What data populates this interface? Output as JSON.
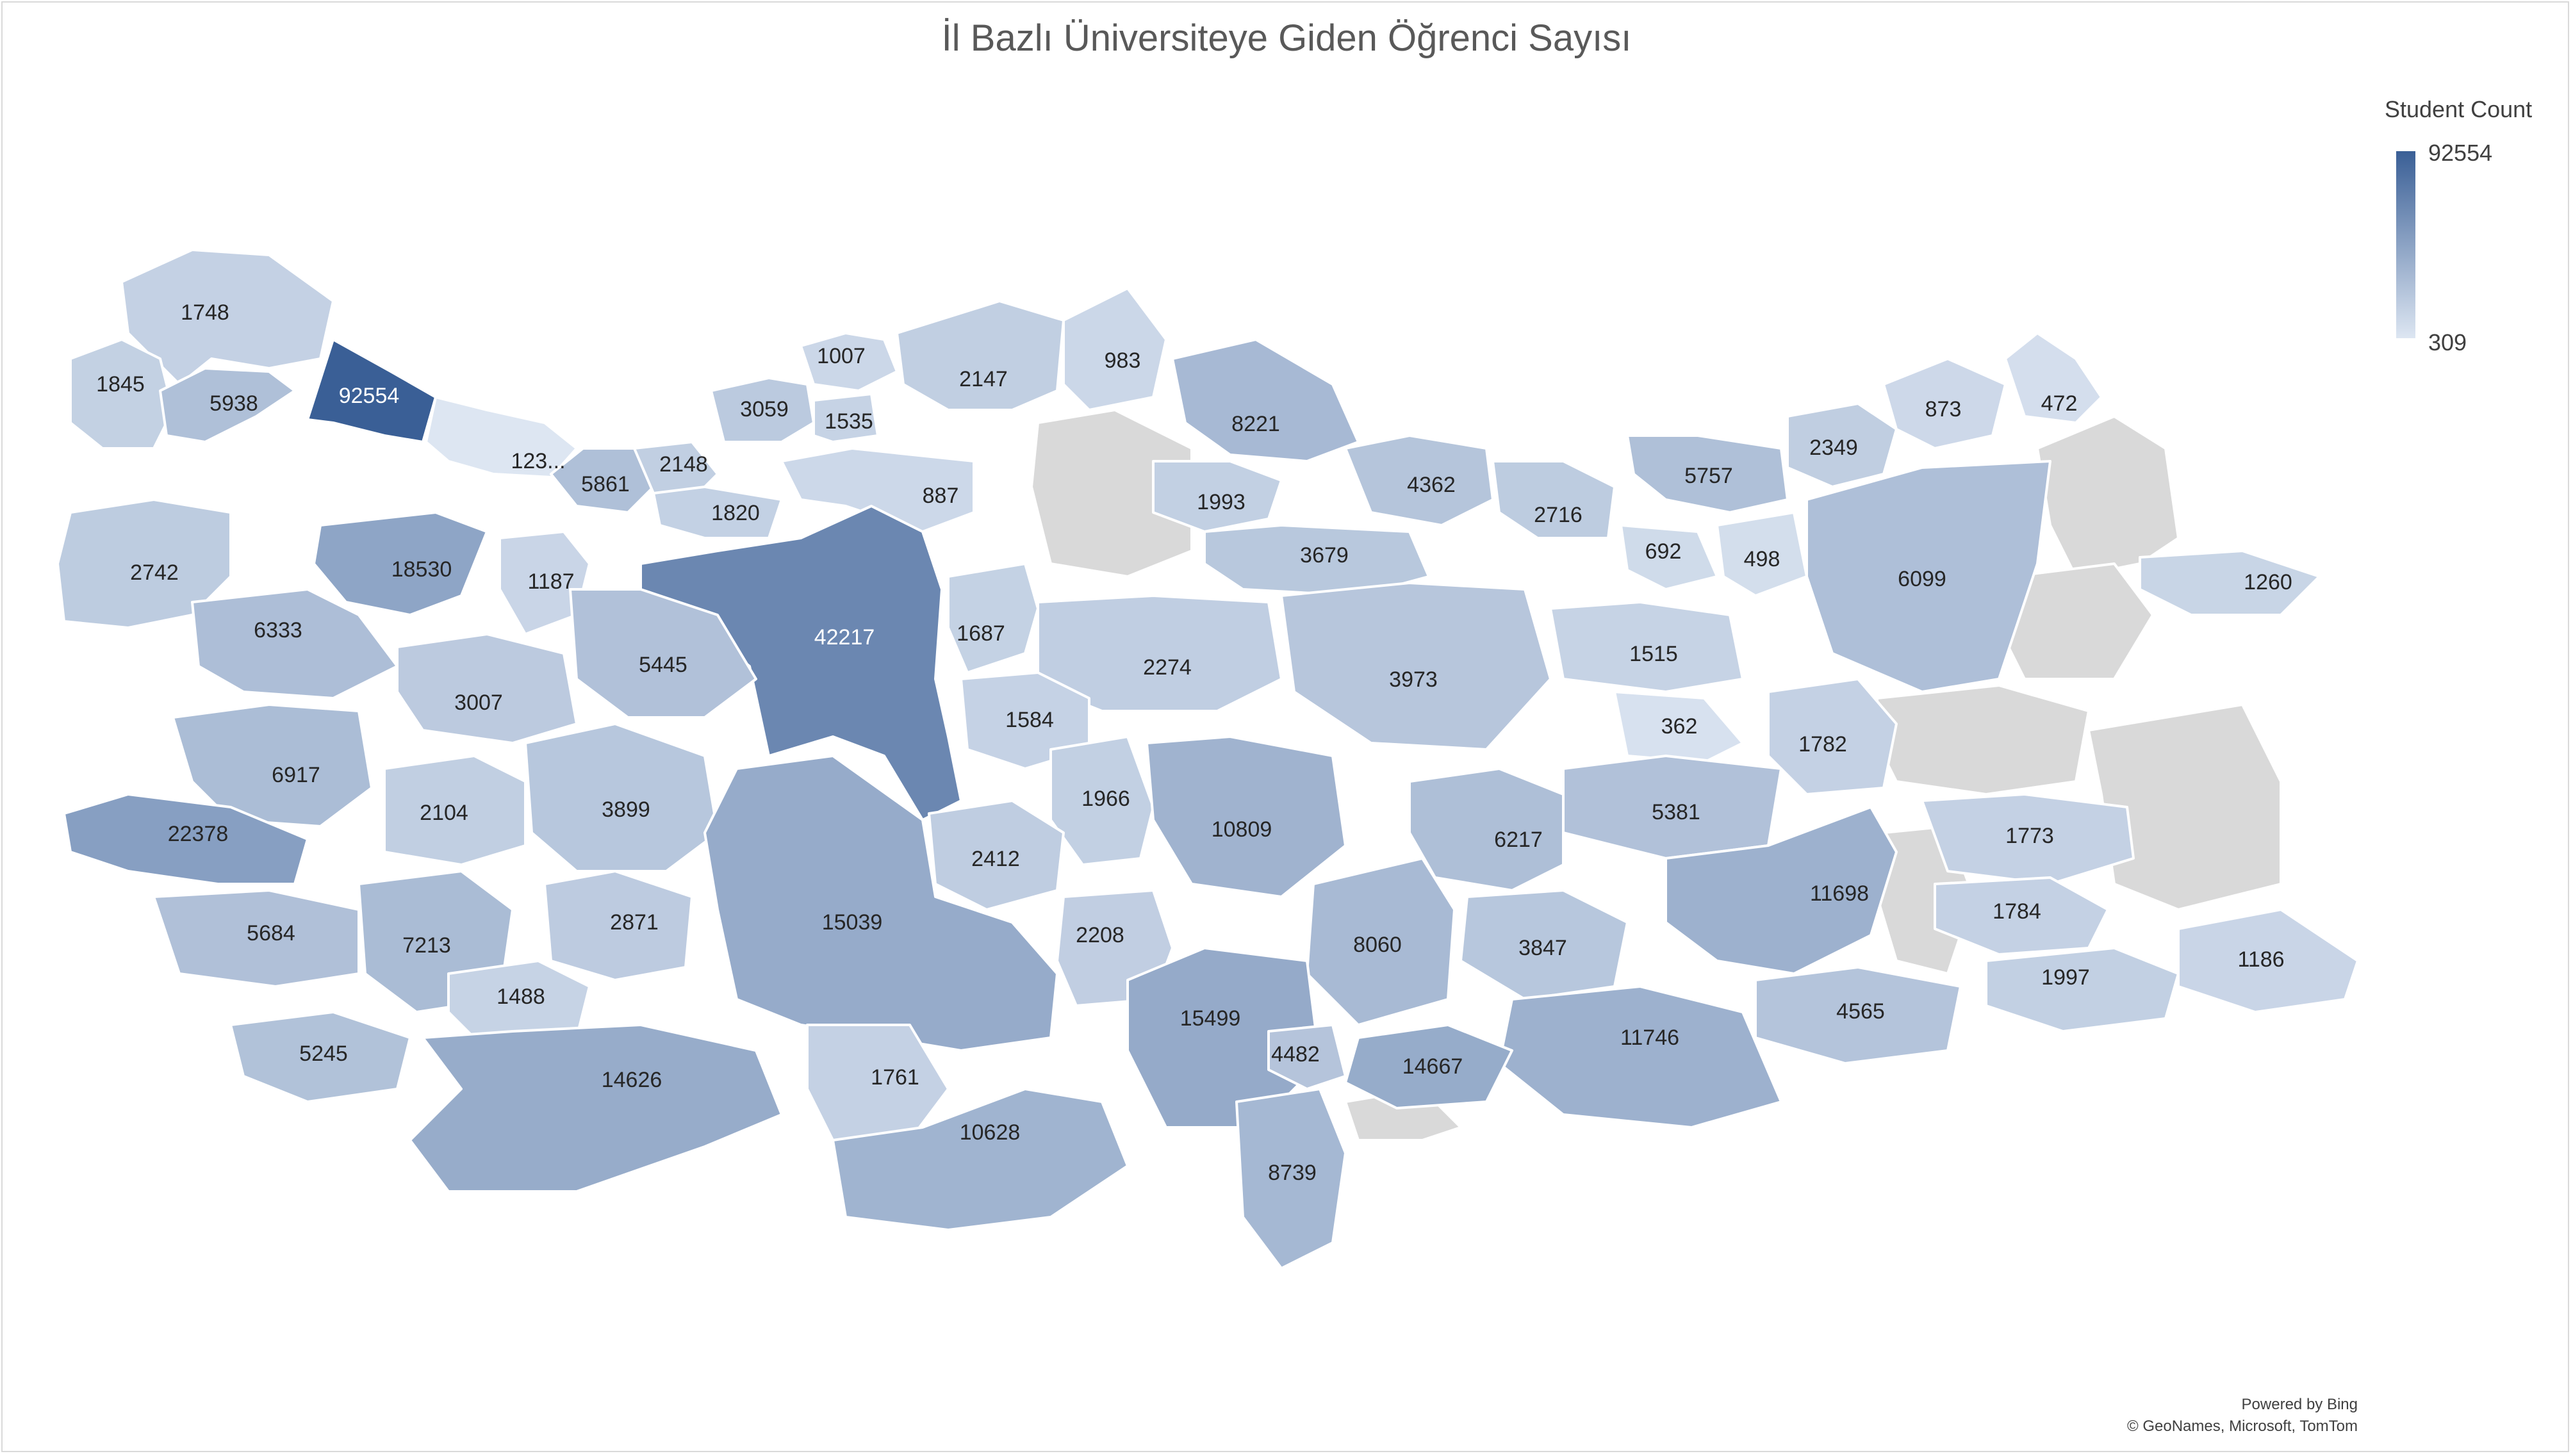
{
  "title": "İl Bazlı Üniversiteye Giden Öğrenci Sayısı",
  "legend": {
    "title": "Student Count",
    "max": "92554",
    "min": "309"
  },
  "attribution": {
    "line1": "Powered by Bing",
    "line2": "© GeoNames, Microsoft, TomTom"
  },
  "colors": {
    "scale_max": "#3a5f96",
    "scale_min": "#dde6f2",
    "no_data": "#d9d9d9",
    "border": "#ffffff"
  },
  "chart_data": {
    "type": "filled-map",
    "title": "İl Bazlı Üniversiteye Giden Öğrenci Sayısı",
    "legend_title": "Student Count",
    "scale_range": [
      309,
      92554
    ],
    "values": [
      "1748",
      "1845",
      "5938",
      "92554",
      "123...",
      "1007",
      "2147",
      "983",
      "3059",
      "1535",
      "8221",
      "5861",
      "2148",
      "1820",
      "887",
      "1993",
      "4362",
      "2716",
      "5757",
      "2349",
      "873",
      "472",
      "2742",
      "18530",
      "1187",
      "42217",
      "1687",
      "3679",
      "692",
      "498",
      "6099",
      "1260",
      "6333",
      "5445",
      "3007",
      "2274",
      "3973",
      "1515",
      "1584",
      "362",
      "1782",
      "6917",
      "1966",
      "10809",
      "5381",
      "2104",
      "3899",
      "22378",
      "2412",
      "6217",
      "1773",
      "15039",
      "11698",
      "2871",
      "2208",
      "3847",
      "1784",
      "5684",
      "7213",
      "8060",
      "1997",
      "1186",
      "1488",
      "15499",
      "4565",
      "5245",
      "11746",
      "4482",
      "14667",
      "14626",
      "1761",
      "10628",
      "8739"
    ]
  }
}
